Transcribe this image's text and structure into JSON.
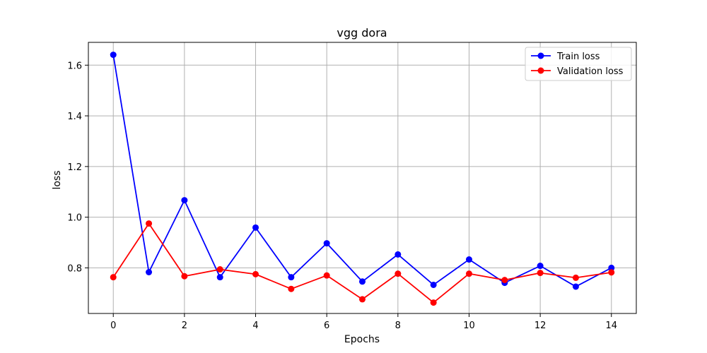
{
  "chart_data": {
    "type": "line",
    "title": "vgg dora",
    "xlabel": "Epochs",
    "ylabel": "loss",
    "x": [
      0,
      1,
      2,
      3,
      4,
      5,
      6,
      7,
      8,
      9,
      10,
      11,
      12,
      13,
      14
    ],
    "xlim": [
      -0.7,
      14.7
    ],
    "ylim": [
      0.62,
      1.69
    ],
    "xticks": [
      0,
      2,
      4,
      6,
      8,
      10,
      12,
      14
    ],
    "yticks": [
      0.8,
      1.0,
      1.2,
      1.4,
      1.6
    ],
    "ytick_labels": [
      "0.8",
      "1.0",
      "1.2",
      "1.4",
      "1.6"
    ],
    "grid": true,
    "legend_position": "top-right",
    "series": [
      {
        "name": "Train loss",
        "color": "#0000ff",
        "marker": "circle",
        "values": [
          1.641,
          0.783,
          1.067,
          0.763,
          0.959,
          0.763,
          0.897,
          0.746,
          0.853,
          0.733,
          0.833,
          0.741,
          0.808,
          0.726,
          0.8
        ]
      },
      {
        "name": "Validation loss",
        "color": "#ff0000",
        "marker": "circle",
        "values": [
          0.763,
          0.975,
          0.767,
          0.794,
          0.775,
          0.717,
          0.77,
          0.676,
          0.777,
          0.663,
          0.777,
          0.752,
          0.78,
          0.761,
          0.782
        ]
      }
    ]
  }
}
